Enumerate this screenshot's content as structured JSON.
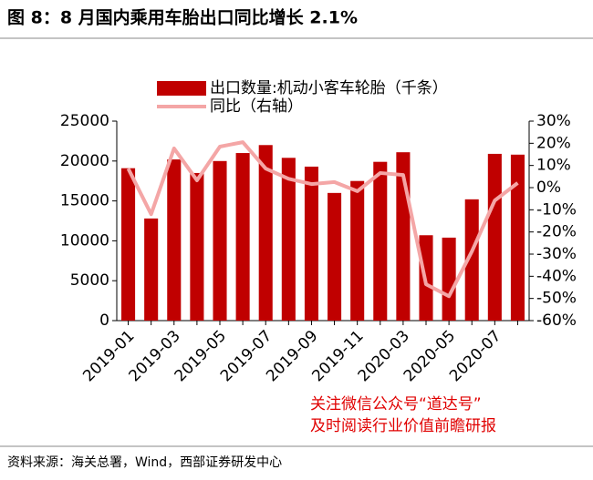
{
  "chart_data": {
    "type": "bar",
    "title": "图 8：8 月国内乘用车胎出口同比增长 2.1%",
    "categories": [
      "2019-01",
      null,
      "2019-03",
      null,
      "2019-05",
      null,
      "2019-07",
      null,
      "2019-09",
      null,
      "2019-11",
      null,
      "2020-03",
      null,
      "2020-05",
      null,
      "2020-07",
      null
    ],
    "series": [
      {
        "name": "出口数量:机动小客车轮胎（千条）",
        "type": "bar",
        "color": "#c00000",
        "values": [
          19100,
          12800,
          20200,
          18500,
          20000,
          21000,
          22000,
          20400,
          19300,
          16000,
          17500,
          19900,
          21100,
          10700,
          10400,
          15200,
          20900,
          20800
        ]
      },
      {
        "name": "同比（右轴）",
        "type": "line",
        "axis": "y2",
        "color": "#f4a6a6",
        "values": [
          8.6,
          -12,
          17.7,
          3.3,
          18.5,
          20.5,
          8.6,
          4,
          1.6,
          2.5,
          -1.6,
          6.6,
          5.7,
          -43.6,
          -49,
          -28.8,
          -5.8,
          2.1
        ]
      }
    ],
    "ylim": [
      0,
      25000
    ],
    "yticks": [
      0,
      5000,
      10000,
      15000,
      20000,
      25000
    ],
    "y2lim": [
      -60,
      30
    ],
    "y2ticks": [
      {
        "value": -60,
        "label": "-60%"
      },
      {
        "value": -50,
        "label": "-50%"
      },
      {
        "value": -40,
        "label": "-40%"
      },
      {
        "value": -30,
        "label": "-30%"
      },
      {
        "value": -20,
        "label": "-20%"
      },
      {
        "value": -10,
        "label": "-10%"
      },
      {
        "value": 0,
        "label": "0%"
      },
      {
        "value": 10,
        "label": "10%"
      },
      {
        "value": 20,
        "label": "20%"
      },
      {
        "value": 30,
        "label": "30%"
      }
    ],
    "annotations": [
      "关注微信公众号“道达号”",
      "及时阅读行业价值前瞻研报"
    ],
    "source": "资料来源：海关总署，Wind，西部证券研发中心"
  }
}
